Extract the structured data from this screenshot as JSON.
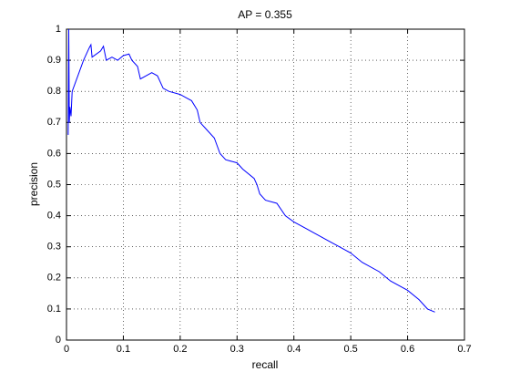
{
  "chart_data": {
    "type": "line",
    "title": "AP = 0.355",
    "x_label": "recall",
    "y_label": "precision",
    "xlim": [
      0,
      0.7
    ],
    "ylim": [
      0,
      1
    ],
    "xticks": [
      0,
      0.1,
      0.2,
      0.3,
      0.4,
      0.5,
      0.6,
      0.7
    ],
    "yticks": [
      0,
      0.1,
      0.2,
      0.3,
      0.4,
      0.5,
      0.6,
      0.7,
      0.8,
      0.9,
      1
    ],
    "grid": true,
    "series": [
      {
        "color": "#0000ff",
        "x": [
          0.003,
          0.004,
          0.005,
          0.006,
          0.008,
          0.01,
          0.02,
          0.03,
          0.04,
          0.043,
          0.045,
          0.06,
          0.065,
          0.07,
          0.08,
          0.09,
          0.1,
          0.11,
          0.115,
          0.125,
          0.13,
          0.15,
          0.16,
          0.17,
          0.18,
          0.2,
          0.21,
          0.22,
          0.23,
          0.235,
          0.245,
          0.26,
          0.27,
          0.28,
          0.3,
          0.31,
          0.33,
          0.335,
          0.34,
          0.35,
          0.37,
          0.385,
          0.4,
          0.42,
          0.44,
          0.46,
          0.48,
          0.5,
          0.52,
          0.55,
          0.57,
          0.6,
          0.62,
          0.635,
          0.648
        ],
        "values": [
          0.66,
          1,
          0.7,
          0.75,
          0.72,
          0.8,
          0.85,
          0.9,
          0.94,
          0.95,
          0.91,
          0.93,
          0.945,
          0.9,
          0.91,
          0.9,
          0.915,
          0.92,
          0.9,
          0.88,
          0.84,
          0.86,
          0.85,
          0.81,
          0.8,
          0.79,
          0.78,
          0.77,
          0.74,
          0.7,
          0.68,
          0.65,
          0.6,
          0.58,
          0.57,
          0.55,
          0.52,
          0.5,
          0.47,
          0.45,
          0.44,
          0.4,
          0.38,
          0.36,
          0.34,
          0.32,
          0.3,
          0.28,
          0.25,
          0.22,
          0.19,
          0.16,
          0.13,
          0.1,
          0.09
        ]
      }
    ]
  }
}
